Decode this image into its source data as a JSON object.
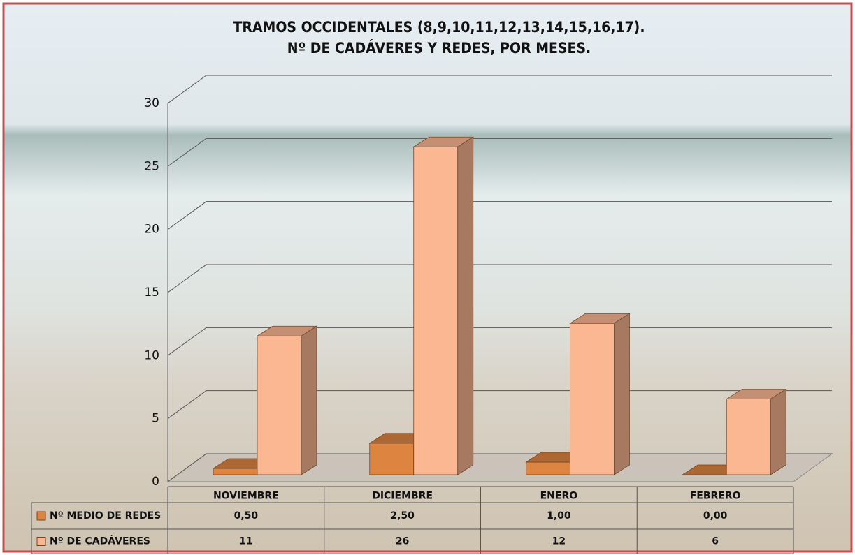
{
  "chart_data": {
    "type": "bar3d",
    "title": "TRAMOS OCCIDENTALES (8,9,10,11,12,13,14,15,16,17).",
    "subtitle": "Nº DE CADÁVERES Y REDES, POR MESES.",
    "categories": [
      "NOVIEMBRE",
      "DICIEMBRE",
      "ENERO",
      "FEBRERO"
    ],
    "series": [
      {
        "name": "Nº MEDIO DE REDES",
        "color": "#dd8440",
        "values": [
          0.5,
          2.5,
          1,
          0
        ],
        "value_labels": [
          "0,50",
          "2,50",
          "1,00",
          "0,00"
        ]
      },
      {
        "name": "Nº DE CADÁVERES",
        "color": "#fbb792",
        "values": [
          11,
          26,
          12,
          6
        ]
      }
    ],
    "ylim": [
      0,
      30
    ],
    "yticks": [
      0,
      5,
      10,
      15,
      20,
      25,
      30
    ],
    "grid": true,
    "data_table": true
  }
}
